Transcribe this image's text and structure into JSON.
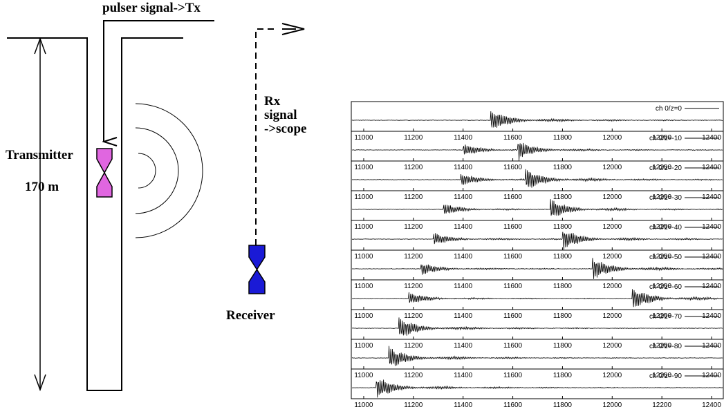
{
  "left_diagram": {
    "pulser_label": "pulser signal->Tx",
    "transmitter_label": "Transmitter",
    "depth_label": "170 m",
    "rx_label": [
      "Rx",
      "signal",
      "->scope"
    ],
    "receiver_label": "Receiver"
  },
  "chart_data": {
    "type": "waveform",
    "xlim": [
      10950,
      12450
    ],
    "xticks": [
      11000,
      11200,
      11400,
      11600,
      11800,
      12000,
      12200,
      12400
    ],
    "traces": [
      {
        "name": "ch 0/z=0",
        "arrivals": [
          11510
        ]
      },
      {
        "name": "ch 0/z=-10",
        "arrivals": [
          11400,
          11620
        ]
      },
      {
        "name": "ch 0/z=-20",
        "arrivals": [
          11390,
          11650
        ]
      },
      {
        "name": "ch 0/z=-30",
        "arrivals": [
          11320,
          11750
        ]
      },
      {
        "name": "ch 0/z=-40",
        "arrivals": [
          11280,
          11800
        ]
      },
      {
        "name": "ch 0/z=-50",
        "arrivals": [
          11230,
          11920
        ]
      },
      {
        "name": "ch 0/z=-60",
        "arrivals": [
          11180,
          12080
        ]
      },
      {
        "name": "ch 0/z=-70",
        "arrivals": [
          11140
        ]
      },
      {
        "name": "ch 0/z=-80",
        "arrivals": [
          11100
        ]
      },
      {
        "name": "ch 0/z=-90",
        "arrivals": [
          11050
        ]
      }
    ]
  }
}
